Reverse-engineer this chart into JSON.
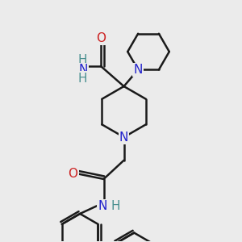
{
  "background_color": "#ebebeb",
  "atom_colors": {
    "N": "#2222cc",
    "O": "#cc2222",
    "H": "#4a9090"
  },
  "bond_color": "#1a1a1a",
  "bond_width": 1.8,
  "font_size": 11
}
